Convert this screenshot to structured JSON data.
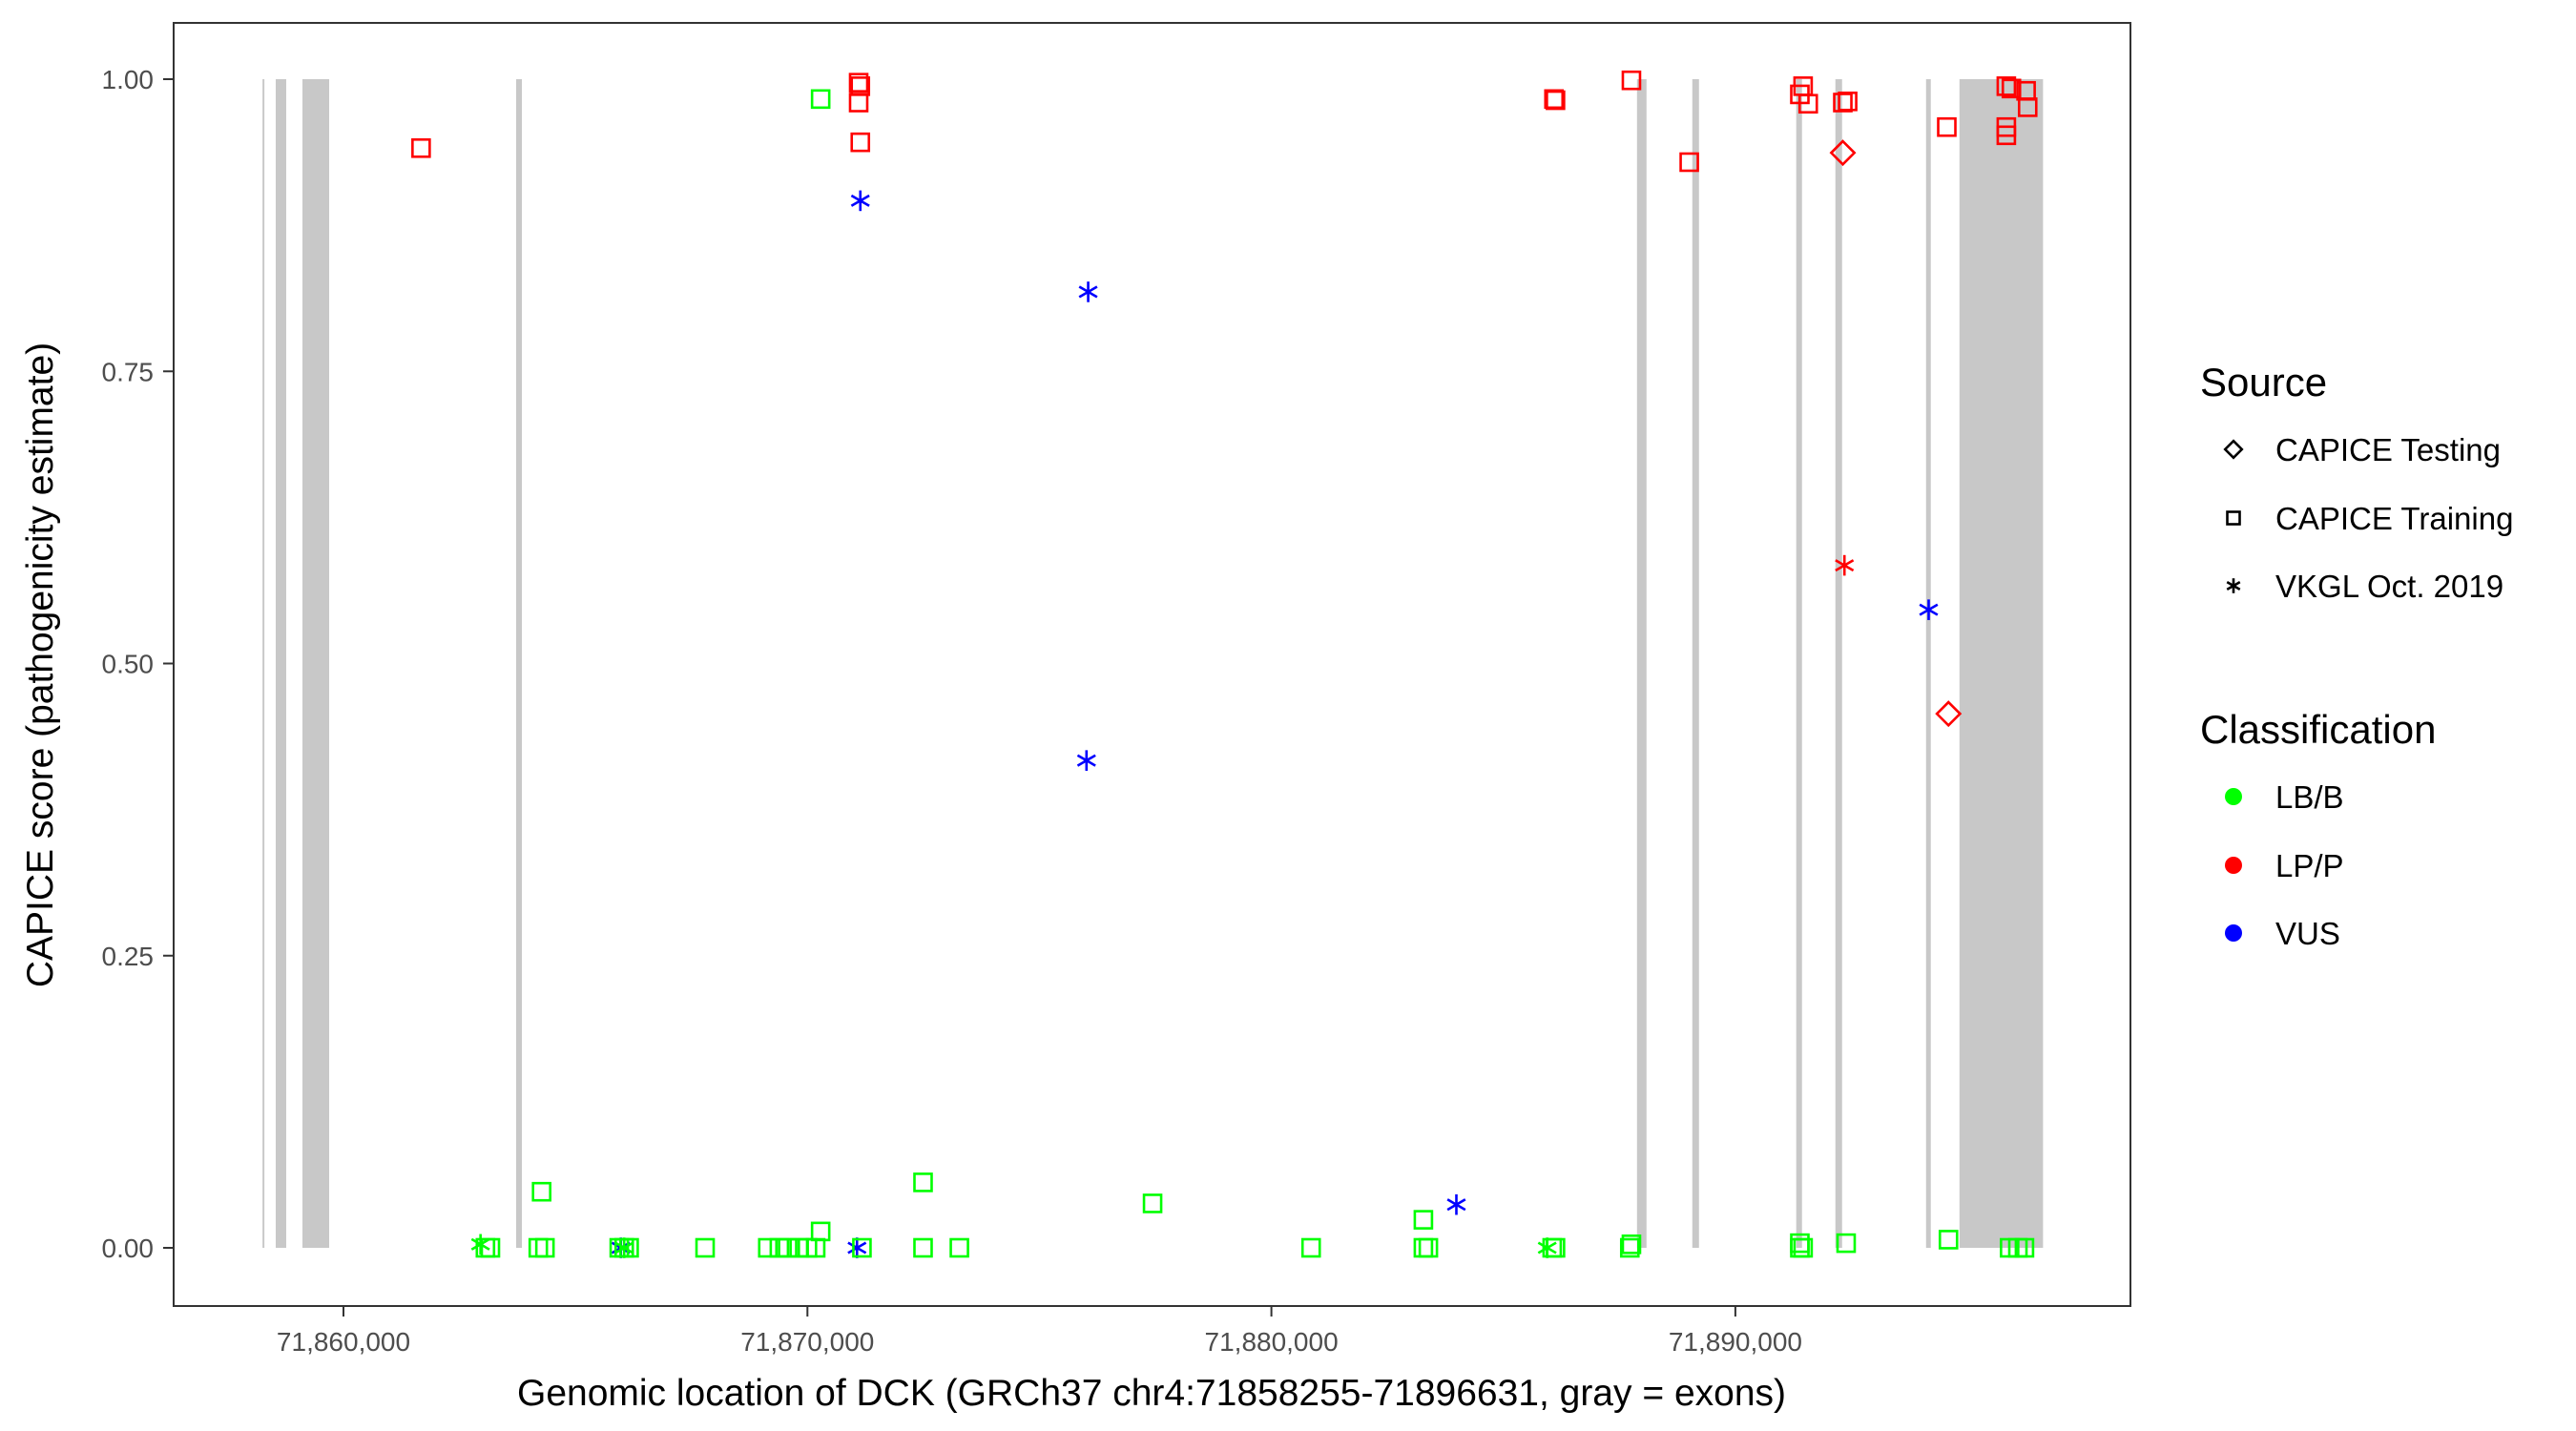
{
  "chart_data": {
    "type": "scatter",
    "xlabel": "Genomic location of DCK (GRCh37 chr4:71858255-71896631, gray = exons)",
    "ylabel": "CAPICE score (pathogenicity estimate)",
    "xlim": [
      71856300,
      71898400
    ],
    "ylim": [
      -0.05,
      1.05
    ],
    "x_ticks": [
      71860000,
      71870000,
      71880000,
      71890000
    ],
    "x_tick_labels": [
      "71,860,000",
      "71,870,000",
      "71,880,000",
      "71,890,000"
    ],
    "y_ticks": [
      0,
      0.25,
      0.5,
      0.75,
      1.0
    ],
    "y_tick_labels": [
      "0.00",
      "0.25",
      "0.50",
      "0.75",
      "1.00"
    ],
    "grid": false,
    "legend_placement": "right",
    "exons": [
      [
        71858255,
        71858290
      ],
      [
        71858540,
        71858766
      ],
      [
        71859116,
        71859692
      ],
      [
        71863722,
        71863845
      ],
      [
        71887880,
        71888085
      ],
      [
        71889072,
        71889216
      ],
      [
        71891312,
        71891436
      ],
      [
        71892156,
        71892300
      ],
      [
        71894110,
        71894212
      ],
      [
        71894830,
        71896631
      ]
    ],
    "legend": {
      "source_title": "Source",
      "sources": [
        {
          "key": "testing",
          "label": "CAPICE Testing",
          "shape": "diamond"
        },
        {
          "key": "training",
          "label": "CAPICE Training",
          "shape": "square"
        },
        {
          "key": "vkgl",
          "label": "VKGL Oct. 2019",
          "shape": "asterisk"
        }
      ],
      "class_title": "Classification",
      "classes": [
        {
          "key": "LB/B",
          "label": "LB/B",
          "color": "#00ff00"
        },
        {
          "key": "LP/P",
          "label": "LP/P",
          "color": "#ff0000"
        },
        {
          "key": "VUS",
          "label": "VUS",
          "color": "#0000ff"
        }
      ]
    },
    "points": [
      {
        "x": 71861673,
        "y": 0.941,
        "source": "training",
        "class": "LP/P"
      },
      {
        "x": 71871104,
        "y": 0.997,
        "source": "training",
        "class": "LP/P"
      },
      {
        "x": 71871140,
        "y": 0.994,
        "source": "training",
        "class": "LP/P"
      },
      {
        "x": 71871104,
        "y": 0.98,
        "source": "training",
        "class": "LP/P"
      },
      {
        "x": 71871140,
        "y": 0.946,
        "source": "training",
        "class": "LP/P"
      },
      {
        "x": 71886123,
        "y": 0.982,
        "source": "training",
        "class": "LP/P"
      },
      {
        "x": 71886090,
        "y": 0.983,
        "source": "training",
        "class": "LP/P"
      },
      {
        "x": 71887760,
        "y": 0.999,
        "source": "training",
        "class": "LP/P"
      },
      {
        "x": 71889006,
        "y": 0.929,
        "source": "training",
        "class": "LP/P"
      },
      {
        "x": 71891390,
        "y": 0.987,
        "source": "training",
        "class": "LP/P"
      },
      {
        "x": 71891460,
        "y": 0.994,
        "source": "training",
        "class": "LP/P"
      },
      {
        "x": 71891570,
        "y": 0.979,
        "source": "training",
        "class": "LP/P"
      },
      {
        "x": 71892316,
        "y": 0.98,
        "source": "training",
        "class": "LP/P"
      },
      {
        "x": 71892420,
        "y": 0.981,
        "source": "training",
        "class": "LP/P"
      },
      {
        "x": 71894557,
        "y": 0.959,
        "source": "training",
        "class": "LP/P"
      },
      {
        "x": 71895840,
        "y": 0.994,
        "source": "training",
        "class": "LP/P"
      },
      {
        "x": 71895950,
        "y": 0.992,
        "source": "training",
        "class": "LP/P"
      },
      {
        "x": 71895840,
        "y": 0.959,
        "source": "training",
        "class": "LP/P"
      },
      {
        "x": 71895840,
        "y": 0.952,
        "source": "training",
        "class": "LP/P"
      },
      {
        "x": 71896266,
        "y": 0.99,
        "source": "training",
        "class": "LP/P"
      },
      {
        "x": 71896300,
        "y": 0.976,
        "source": "training",
        "class": "LP/P"
      },
      {
        "x": 71892316,
        "y": 0.937,
        "source": "testing",
        "class": "LP/P"
      },
      {
        "x": 71894593,
        "y": 0.457,
        "source": "testing",
        "class": "LP/P"
      },
      {
        "x": 71892351,
        "y": 0.584,
        "source": "vkgl",
        "class": "LP/P"
      },
      {
        "x": 71871140,
        "y": 0.896,
        "source": "vkgl",
        "class": "VUS"
      },
      {
        "x": 71876051,
        "y": 0.818,
        "source": "vkgl",
        "class": "VUS"
      },
      {
        "x": 71876015,
        "y": 0.417,
        "source": "vkgl",
        "class": "VUS"
      },
      {
        "x": 71883987,
        "y": 0.037,
        "source": "vkgl",
        "class": "VUS"
      },
      {
        "x": 71894166,
        "y": 0.546,
        "source": "vkgl",
        "class": "VUS"
      },
      {
        "x": 71865979,
        "y": 0.0,
        "source": "vkgl",
        "class": "VUS"
      },
      {
        "x": 71871068,
        "y": 0.0,
        "source": "vkgl",
        "class": "VUS"
      },
      {
        "x": 71862954,
        "y": 0.003,
        "source": "vkgl",
        "class": "LB/B"
      },
      {
        "x": 71866050,
        "y": 0.0,
        "source": "vkgl",
        "class": "LB/B"
      },
      {
        "x": 71885945,
        "y": 0.0,
        "source": "vkgl",
        "class": "LB/B"
      },
      {
        "x": 71870285,
        "y": 0.983,
        "source": "training",
        "class": "LB/B"
      },
      {
        "x": 71864271,
        "y": 0.048,
        "source": "training",
        "class": "LB/B"
      },
      {
        "x": 71872492,
        "y": 0.056,
        "source": "training",
        "class": "LB/B"
      },
      {
        "x": 71877439,
        "y": 0.038,
        "source": "training",
        "class": "LB/B"
      },
      {
        "x": 71883276,
        "y": 0.024,
        "source": "training",
        "class": "LB/B"
      },
      {
        "x": 71870285,
        "y": 0.014,
        "source": "training",
        "class": "LB/B"
      },
      {
        "x": 71894593,
        "y": 0.007,
        "source": "training",
        "class": "LB/B"
      },
      {
        "x": 71891390,
        "y": 0.004,
        "source": "training",
        "class": "LB/B"
      },
      {
        "x": 71892387,
        "y": 0.004,
        "source": "training",
        "class": "LB/B"
      },
      {
        "x": 71887760,
        "y": 0.003,
        "source": "training",
        "class": "LB/B"
      },
      {
        "x": 71863060,
        "y": 0.0,
        "source": "training",
        "class": "LB/B"
      },
      {
        "x": 71863167,
        "y": 0.0,
        "source": "training",
        "class": "LB/B"
      },
      {
        "x": 71864199,
        "y": 0.0,
        "source": "training",
        "class": "LB/B"
      },
      {
        "x": 71864342,
        "y": 0.0,
        "source": "training",
        "class": "LB/B"
      },
      {
        "x": 71865944,
        "y": 0.0,
        "source": "training",
        "class": "LB/B"
      },
      {
        "x": 71866051,
        "y": 0.0,
        "source": "training",
        "class": "LB/B"
      },
      {
        "x": 71866157,
        "y": 0.0,
        "source": "training",
        "class": "LB/B"
      },
      {
        "x": 71867794,
        "y": 0.0,
        "source": "training",
        "class": "LB/B"
      },
      {
        "x": 71869146,
        "y": 0.0,
        "source": "training",
        "class": "LB/B"
      },
      {
        "x": 71869395,
        "y": 0.0,
        "source": "training",
        "class": "LB/B"
      },
      {
        "x": 71869573,
        "y": 0.0,
        "source": "training",
        "class": "LB/B"
      },
      {
        "x": 71869822,
        "y": 0.0,
        "source": "training",
        "class": "LB/B"
      },
      {
        "x": 71870000,
        "y": 0.0,
        "source": "training",
        "class": "LB/B"
      },
      {
        "x": 71870178,
        "y": 0.0,
        "source": "training",
        "class": "LB/B"
      },
      {
        "x": 71871175,
        "y": 0.0,
        "source": "training",
        "class": "LB/B"
      },
      {
        "x": 71872492,
        "y": 0.0,
        "source": "training",
        "class": "LB/B"
      },
      {
        "x": 71873275,
        "y": 0.0,
        "source": "training",
        "class": "LB/B"
      },
      {
        "x": 71880856,
        "y": 0.0,
        "source": "training",
        "class": "LB/B"
      },
      {
        "x": 71883276,
        "y": 0.0,
        "source": "training",
        "class": "LB/B"
      },
      {
        "x": 71883383,
        "y": 0.0,
        "source": "training",
        "class": "LB/B"
      },
      {
        "x": 71886052,
        "y": 0.0,
        "source": "training",
        "class": "LB/B"
      },
      {
        "x": 71886123,
        "y": 0.0,
        "source": "training",
        "class": "LB/B"
      },
      {
        "x": 71887725,
        "y": 0.0,
        "source": "training",
        "class": "LB/B"
      },
      {
        "x": 71891390,
        "y": 0.0,
        "source": "training",
        "class": "LB/B"
      },
      {
        "x": 71891460,
        "y": 0.0,
        "source": "training",
        "class": "LB/B"
      },
      {
        "x": 71895911,
        "y": 0.0,
        "source": "training",
        "class": "LB/B"
      },
      {
        "x": 71896089,
        "y": 0.0,
        "source": "training",
        "class": "LB/B"
      },
      {
        "x": 71896231,
        "y": 0.0,
        "source": "training",
        "class": "LB/B"
      }
    ]
  }
}
